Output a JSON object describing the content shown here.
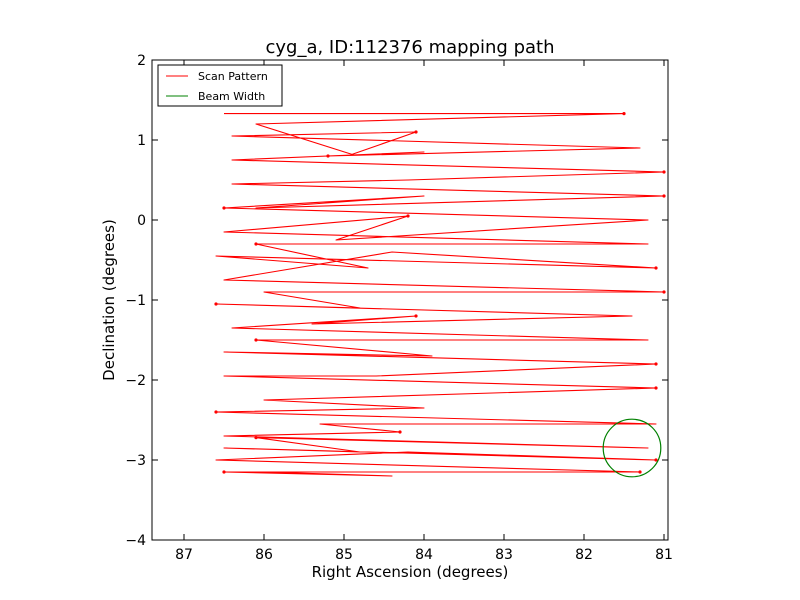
{
  "chart_data": {
    "type": "line",
    "title": "cyg_a, ID:112376 mapping path",
    "xlabel": "Right Ascension (degrees)",
    "ylabel": "Declination (degrees)",
    "xlim": [
      87.4,
      80.95
    ],
    "ylim": [
      -4,
      2
    ],
    "x_ticks": [
      87,
      86,
      85,
      84,
      83,
      82,
      81
    ],
    "y_ticks": [
      2,
      1,
      0,
      -1,
      -2,
      -3,
      -4
    ],
    "x_tick_labels": [
      "87",
      "86",
      "85",
      "84",
      "83",
      "82",
      "81"
    ],
    "y_tick_labels": [
      "2",
      "1",
      "0",
      "−1",
      "−2",
      "−3",
      "−4"
    ],
    "grid": false,
    "legend_position": "top-left",
    "series": [
      {
        "name": "Scan Pattern",
        "color": "#ff0000",
        "style": "zigzag-raster",
        "dec_rows": [
          1.33,
          1.2,
          1.05,
          0.9,
          0.75,
          0.6,
          0.45,
          0.3,
          0.15,
          0.0,
          -0.15,
          -0.3,
          -0.45,
          -0.6,
          -0.75,
          -0.9,
          -1.05,
          -1.2,
          -1.35,
          -1.5,
          -1.65,
          -1.8,
          -1.95,
          -2.1,
          -2.25,
          -2.4,
          -2.55,
          -2.7,
          -2.85,
          -3.0,
          -3.15
        ],
        "ra_range": [
          86.6,
          81.1
        ],
        "x": [
          86.5,
          81.5,
          86.1,
          84.9,
          84.1,
          86.4,
          81.3,
          85.2,
          84.0,
          86.4,
          81.0,
          84.2,
          86.4,
          81.0,
          86.1,
          84.0,
          86.5,
          81.2,
          85.1,
          84.2,
          86.5,
          81.2,
          86.1,
          84.7,
          86.6,
          81.1,
          84.4,
          86.5,
          81.0,
          86.0,
          84.8,
          86.6,
          81.4,
          85.4,
          84.1,
          86.4,
          81.2,
          86.1,
          83.9,
          86.5,
          81.1,
          84.6,
          86.5,
          81.1,
          86.0,
          84.0,
          86.6,
          81.1,
          85.3,
          84.3,
          86.5,
          81.2,
          86.1,
          84.8,
          86.5,
          81.1,
          84.2,
          86.6,
          81.3,
          86.0,
          84.4,
          86.5,
          81.6
        ],
        "y": [
          1.33,
          1.33,
          1.2,
          0.82,
          1.1,
          1.05,
          0.9,
          0.8,
          0.85,
          0.75,
          0.6,
          0.5,
          0.45,
          0.3,
          0.15,
          0.3,
          0.15,
          0.0,
          -0.25,
          0.05,
          -0.15,
          -0.3,
          -0.3,
          -0.6,
          -0.45,
          -0.6,
          -0.4,
          -0.75,
          -0.9,
          -0.9,
          -1.1,
          -1.05,
          -1.2,
          -1.3,
          -1.2,
          -1.35,
          -1.5,
          -1.5,
          -1.7,
          -1.65,
          -1.8,
          -1.95,
          -1.95,
          -2.1,
          -2.25,
          -2.35,
          -2.4,
          -2.55,
          -2.55,
          -2.65,
          -2.7,
          -2.85,
          -2.72,
          -2.9,
          -2.85,
          -3.0,
          -2.9,
          -3.0,
          -3.15,
          -3.15,
          -3.2,
          -3.15,
          -3.15
        ]
      },
      {
        "name": "Beam Width",
        "color": "#008000",
        "style": "circle",
        "center": [
          81.4,
          -2.85
        ],
        "radius": 0.36
      }
    ]
  }
}
